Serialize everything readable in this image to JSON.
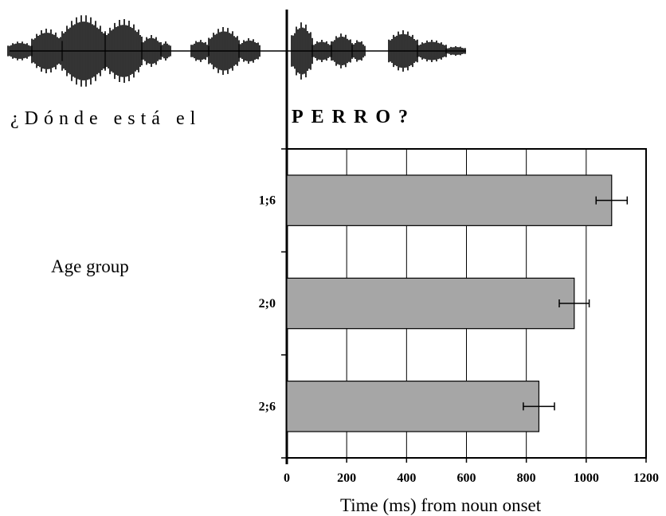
{
  "sentence": {
    "prefix": "¿Dónde está el",
    "noun": "PERRO?"
  },
  "colors": {
    "bar_fill": "#a6a6a6",
    "bar_stroke": "#000000",
    "grid": "#000000",
    "waveform": "#000000"
  },
  "chart_data": {
    "type": "bar",
    "orientation": "horizontal",
    "title": "",
    "xlabel": "Time (ms) from noun onset",
    "ylabel": "Age group",
    "categories": [
      "1;6",
      "2;0",
      "2;6"
    ],
    "values": [
      1085,
      960,
      842
    ],
    "error": [
      52,
      50,
      52
    ],
    "xlim": [
      0,
      1200
    ],
    "x_ticks": [
      0,
      200,
      400,
      600,
      800,
      1000,
      1200
    ],
    "grid": "vertical lines",
    "legend": "none"
  }
}
